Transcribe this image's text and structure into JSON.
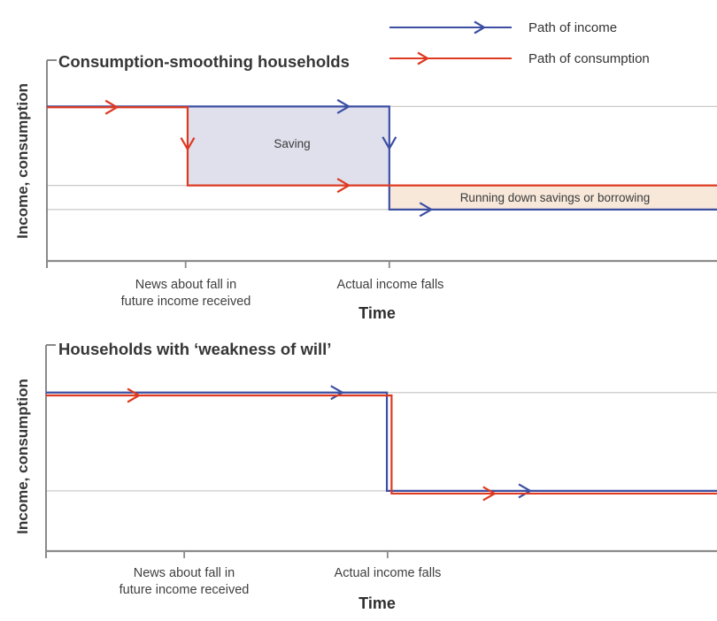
{
  "colors": {
    "income": "#3d4fa3",
    "consumption": "#de3a22",
    "saving_fill": "#dfe0ec",
    "dissaving_fill": "#f7e8da",
    "gridline": "#c9c9c9",
    "axis": "#8a8a8a"
  },
  "legend": {
    "items": [
      {
        "label": "Path of income",
        "series": "income"
      },
      {
        "label": "Path of consumption",
        "series": "consumption"
      }
    ]
  },
  "chart_data": [
    {
      "type": "line",
      "variant": "step",
      "title": "Consumption-smoothing households",
      "ylabel": "Income, consumption",
      "xlabel": "Time",
      "x_domain": [
        0,
        1
      ],
      "y_domain": [
        0,
        1.3
      ],
      "grid": "horizontal-only",
      "grid_values": [
        1,
        0.489,
        0.333
      ],
      "x_ticks": [
        {
          "x": 0.207,
          "lines": [
            "News about fall in",
            "future income received"
          ]
        },
        {
          "x": 0.511,
          "lines": [
            "Actual income falls"
          ]
        }
      ],
      "series": [
        {
          "name": "Path of income",
          "key": "income",
          "points": [
            [
              0,
              1
            ],
            [
              0.511,
              1
            ],
            [
              0.511,
              0.333
            ],
            [
              1,
              0.333
            ]
          ],
          "arrows": [
            {
              "x": 0.448,
              "v": 1,
              "dir": "right"
            },
            {
              "x": 0.511,
              "v": 0.74,
              "dir": "down"
            },
            {
              "x": 0.571,
              "v": 0.333,
              "dir": "right"
            }
          ]
        },
        {
          "name": "Path of consumption",
          "key": "consumption",
          "points": [
            [
              0,
              0.995
            ],
            [
              0.21,
              0.995
            ],
            [
              0.21,
              0.489
            ],
            [
              1,
              0.489
            ]
          ],
          "arrows": [
            {
              "x": 0.102,
              "v": 0.995,
              "dir": "right"
            },
            {
              "x": 0.21,
              "v": 0.735,
              "dir": "down"
            },
            {
              "x": 0.448,
              "v": 0.489,
              "dir": "right"
            }
          ]
        }
      ],
      "regions": [
        {
          "label": "Saving",
          "x1": 0.21,
          "x2": 0.511,
          "v1": 0.489,
          "v2": 1,
          "fill_key": "saving_fill"
        },
        {
          "label": "Running down savings or borrowing",
          "x1": 0.511,
          "x2": 1,
          "v1": 0.333,
          "v2": 0.489,
          "fill_key": "dissaving_fill"
        }
      ]
    },
    {
      "type": "line",
      "variant": "step",
      "title": "Households with ‘weakness of will’",
      "ylabel": "Income, consumption",
      "xlabel": "Time",
      "x_domain": [
        0,
        1
      ],
      "y_domain": [
        0,
        1.3
      ],
      "grid": "horizontal-only",
      "grid_values": [
        1,
        0.38
      ],
      "x_ticks": [
        {
          "x": 0.206,
          "lines": [
            "News about fall in",
            "future income received"
          ]
        },
        {
          "x": 0.509,
          "lines": [
            "Actual income falls"
          ]
        }
      ],
      "series": [
        {
          "name": "Path of income",
          "key": "income",
          "points": [
            [
              0,
              1
            ],
            [
              0.508,
              1
            ],
            [
              0.508,
              0.38
            ],
            [
              1,
              0.38
            ]
          ],
          "arrows": [
            {
              "x": 0.439,
              "v": 1,
              "dir": "right"
            },
            {
              "x": 0.719,
              "v": 0.38,
              "dir": "right"
            }
          ]
        },
        {
          "name": "Path of consumption",
          "key": "consumption",
          "points": [
            [
              0,
              0.982
            ],
            [
              0.515,
              0.982
            ],
            [
              0.515,
              0.363
            ],
            [
              1,
              0.363
            ]
          ],
          "arrows": [
            {
              "x": 0.136,
              "v": 0.982,
              "dir": "right"
            },
            {
              "x": 0.666,
              "v": 0.363,
              "dir": "right"
            }
          ]
        }
      ],
      "regions": []
    }
  ]
}
